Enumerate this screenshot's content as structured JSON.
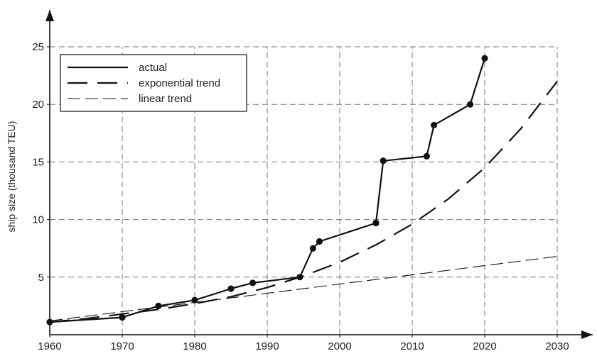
{
  "chart_data": {
    "type": "line",
    "title": "",
    "xlabel": "",
    "ylabel": "ship size (thousand TEU)",
    "xlim": [
      1960,
      2030
    ],
    "ylim": [
      0,
      25
    ],
    "xticks": [
      1960,
      1970,
      1980,
      1990,
      2000,
      2010,
      2020,
      2030
    ],
    "yticks": [
      5,
      10,
      15,
      20,
      25
    ],
    "grid": true,
    "legend_position": "top-left",
    "series": [
      {
        "name": "actual",
        "style": "solid",
        "markers": true,
        "x": [
          1960,
          1970,
          1975,
          1980,
          1985,
          1988,
          1994.5,
          1996.3,
          1997.2,
          2005,
          2006,
          2012,
          2013,
          2018,
          2020
        ],
        "y": [
          1.1,
          1.5,
          2.5,
          3.0,
          4.0,
          4.5,
          5.0,
          7.5,
          8.1,
          9.7,
          15.1,
          15.5,
          18.2,
          20.0,
          24.0
        ]
      },
      {
        "name": "exponential trend",
        "style": "long-dash",
        "markers": false,
        "x": [
          1960,
          1965,
          1970,
          1975,
          1980,
          1985,
          1990,
          1995,
          2000,
          2005,
          2010,
          2015,
          2020,
          2025,
          2030
        ],
        "y": [
          1.1,
          1.4,
          1.8,
          2.2,
          2.7,
          3.3,
          4.1,
          5.1,
          6.3,
          7.8,
          9.6,
          11.8,
          14.5,
          17.9,
          22.0
        ]
      },
      {
        "name": "linear trend",
        "style": "dash",
        "markers": false,
        "x": [
          1960,
          2030
        ],
        "y": [
          1.2,
          6.8
        ]
      }
    ]
  }
}
